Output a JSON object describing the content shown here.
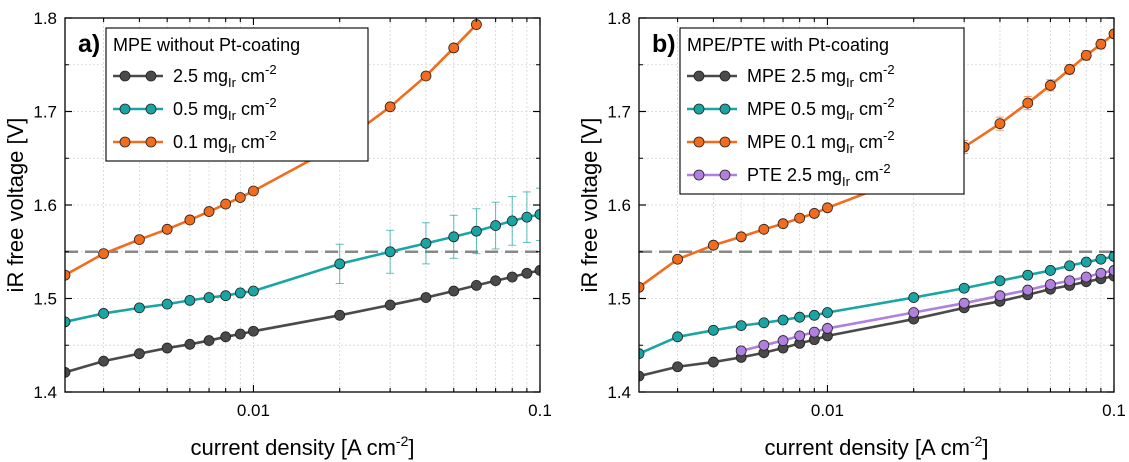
{
  "chart_data": [
    {
      "type": "line",
      "panel_label": "a)",
      "legend_title": "MPE without Pt-coating",
      "xlabel": "current density [A cm",
      "xlabel_sup": "-2",
      "xlabel_end": "]",
      "ylabel": "iR free voltage [V]",
      "x_scale": "log",
      "xlim": [
        0.0022,
        0.1
      ],
      "ylim": [
        1.4,
        1.8
      ],
      "x_ticks": [
        0.01,
        0.1
      ],
      "x_tick_labels": [
        "0.01",
        "0.1"
      ],
      "y_ticks": [
        1.4,
        1.5,
        1.6,
        1.7,
        1.8
      ],
      "y_tick_labels": [
        "1.4",
        "1.5",
        "1.6",
        "1.7",
        "1.8"
      ],
      "grid": true,
      "legend_position": "top-left",
      "reference_line": {
        "y": 1.55,
        "color": "#888888",
        "style": "dashed"
      },
      "series": [
        {
          "name": "2.5 mg",
          "sub": "Ir",
          "unit": " cm",
          "sup": "-2",
          "color": "#4a4a4a",
          "x": [
            0.0022,
            0.003,
            0.004,
            0.005,
            0.006,
            0.007,
            0.008,
            0.009,
            0.01,
            0.02,
            0.03,
            0.04,
            0.05,
            0.06,
            0.07,
            0.08,
            0.09,
            0.1
          ],
          "y": [
            1.421,
            1.433,
            1.441,
            1.447,
            1.451,
            1.455,
            1.459,
            1.462,
            1.465,
            1.482,
            1.493,
            1.501,
            1.508,
            1.514,
            1.519,
            1.523,
            1.527,
            1.53
          ],
          "err": []
        },
        {
          "name": "0.5 mg",
          "sub": "Ir",
          "unit": " cm",
          "sup": "-2",
          "color": "#1aa5a5",
          "x": [
            0.0022,
            0.003,
            0.004,
            0.005,
            0.006,
            0.007,
            0.008,
            0.009,
            0.01,
            0.02,
            0.03,
            0.04,
            0.05,
            0.06,
            0.07,
            0.08,
            0.09,
            0.1
          ],
          "y": [
            1.475,
            1.484,
            1.49,
            1.494,
            1.498,
            1.501,
            1.503,
            1.506,
            1.508,
            1.537,
            1.55,
            1.559,
            1.566,
            1.572,
            1.578,
            1.583,
            1.587,
            1.59
          ],
          "err": [
            0,
            0,
            0,
            0,
            0,
            0,
            0,
            0,
            0,
            0.021,
            0.023,
            0.022,
            0.023,
            0.024,
            0.025,
            0.026,
            0.027,
            0.028
          ]
        },
        {
          "name": "0.1 mg",
          "sub": "Ir",
          "unit": " cm",
          "sup": "-2",
          "color": "#f26c1e",
          "x": [
            0.0022,
            0.003,
            0.004,
            0.005,
            0.006,
            0.007,
            0.008,
            0.009,
            0.01,
            0.02,
            0.03,
            0.04,
            0.05,
            0.06
          ],
          "y": [
            1.525,
            1.548,
            1.563,
            1.574,
            1.584,
            1.593,
            1.601,
            1.608,
            1.615,
            1.665,
            1.705,
            1.738,
            1.768,
            1.793
          ],
          "err": []
        }
      ]
    },
    {
      "type": "line",
      "panel_label": "b)",
      "legend_title": "MPE/PTE with Pt-coating",
      "xlabel": "current density [A cm",
      "xlabel_sup": "-2",
      "xlabel_end": "]",
      "ylabel": "iR free voltage [V]",
      "x_scale": "log",
      "xlim": [
        0.0022,
        0.1
      ],
      "ylim": [
        1.4,
        1.8
      ],
      "x_ticks": [
        0.01,
        0.1
      ],
      "x_tick_labels": [
        "0.01",
        "0.1"
      ],
      "y_ticks": [
        1.4,
        1.5,
        1.6,
        1.7,
        1.8
      ],
      "y_tick_labels": [
        "1.4",
        "1.5",
        "1.6",
        "1.7",
        "1.8"
      ],
      "grid": true,
      "legend_position": "top-left",
      "reference_line": {
        "y": 1.55,
        "color": "#888888",
        "style": "dashed"
      },
      "series": [
        {
          "name": "MPE 2.5 mg",
          "sub": "Ir",
          "unit": " cm",
          "sup": "-2",
          "color": "#4a4a4a",
          "x": [
            0.0022,
            0.003,
            0.004,
            0.005,
            0.006,
            0.007,
            0.008,
            0.009,
            0.01,
            0.02,
            0.03,
            0.04,
            0.05,
            0.06,
            0.07,
            0.08,
            0.09,
            0.1
          ],
          "y": [
            1.417,
            1.427,
            1.432,
            1.437,
            1.442,
            1.447,
            1.452,
            1.456,
            1.46,
            1.478,
            1.49,
            1.497,
            1.504,
            1.51,
            1.514,
            1.518,
            1.521,
            1.524
          ],
          "err": []
        },
        {
          "name": "MPE 0.5 mg",
          "sub": "Ir",
          "unit": " cm",
          "sup": "-2",
          "color": "#1aa5a5",
          "x": [
            0.0022,
            0.003,
            0.004,
            0.005,
            0.006,
            0.007,
            0.008,
            0.009,
            0.01,
            0.02,
            0.03,
            0.04,
            0.05,
            0.06,
            0.07,
            0.08,
            0.09,
            0.1
          ],
          "y": [
            1.441,
            1.459,
            1.466,
            1.471,
            1.474,
            1.477,
            1.48,
            1.482,
            1.485,
            1.501,
            1.511,
            1.519,
            1.525,
            1.53,
            1.535,
            1.539,
            1.542,
            1.545
          ],
          "err": []
        },
        {
          "name": "MPE 0.1 mg",
          "sub": "Ir",
          "unit": " cm",
          "sup": "-2",
          "color": "#f26c1e",
          "x": [
            0.0022,
            0.003,
            0.004,
            0.005,
            0.006,
            0.007,
            0.008,
            0.009,
            0.01,
            0.02,
            0.03,
            0.04,
            0.05,
            0.06,
            0.07,
            0.08,
            0.09,
            0.1
          ],
          "y": [
            1.512,
            1.542,
            1.557,
            1.566,
            1.574,
            1.58,
            1.586,
            1.591,
            1.597,
            1.632,
            1.662,
            1.687,
            1.709,
            1.728,
            1.745,
            1.76,
            1.772,
            1.783
          ],
          "err": [
            0,
            0,
            0,
            0,
            0,
            0,
            0,
            0,
            0,
            0.004,
            0.007,
            0.007,
            0.007,
            0.006,
            0.005,
            0.005,
            0.005,
            0.004
          ]
        },
        {
          "name": "PTE 2.5 mg",
          "sub": "Ir",
          "unit": " cm",
          "sup": "-2",
          "color": "#b07fe0",
          "x": [
            0.005,
            0.006,
            0.007,
            0.008,
            0.009,
            0.01,
            0.02,
            0.03,
            0.04,
            0.05,
            0.06,
            0.07,
            0.08,
            0.09,
            0.1
          ],
          "y": [
            1.444,
            1.45,
            1.455,
            1.46,
            1.464,
            1.468,
            1.485,
            1.495,
            1.503,
            1.509,
            1.515,
            1.519,
            1.523,
            1.527,
            1.53
          ],
          "err": []
        }
      ]
    }
  ]
}
